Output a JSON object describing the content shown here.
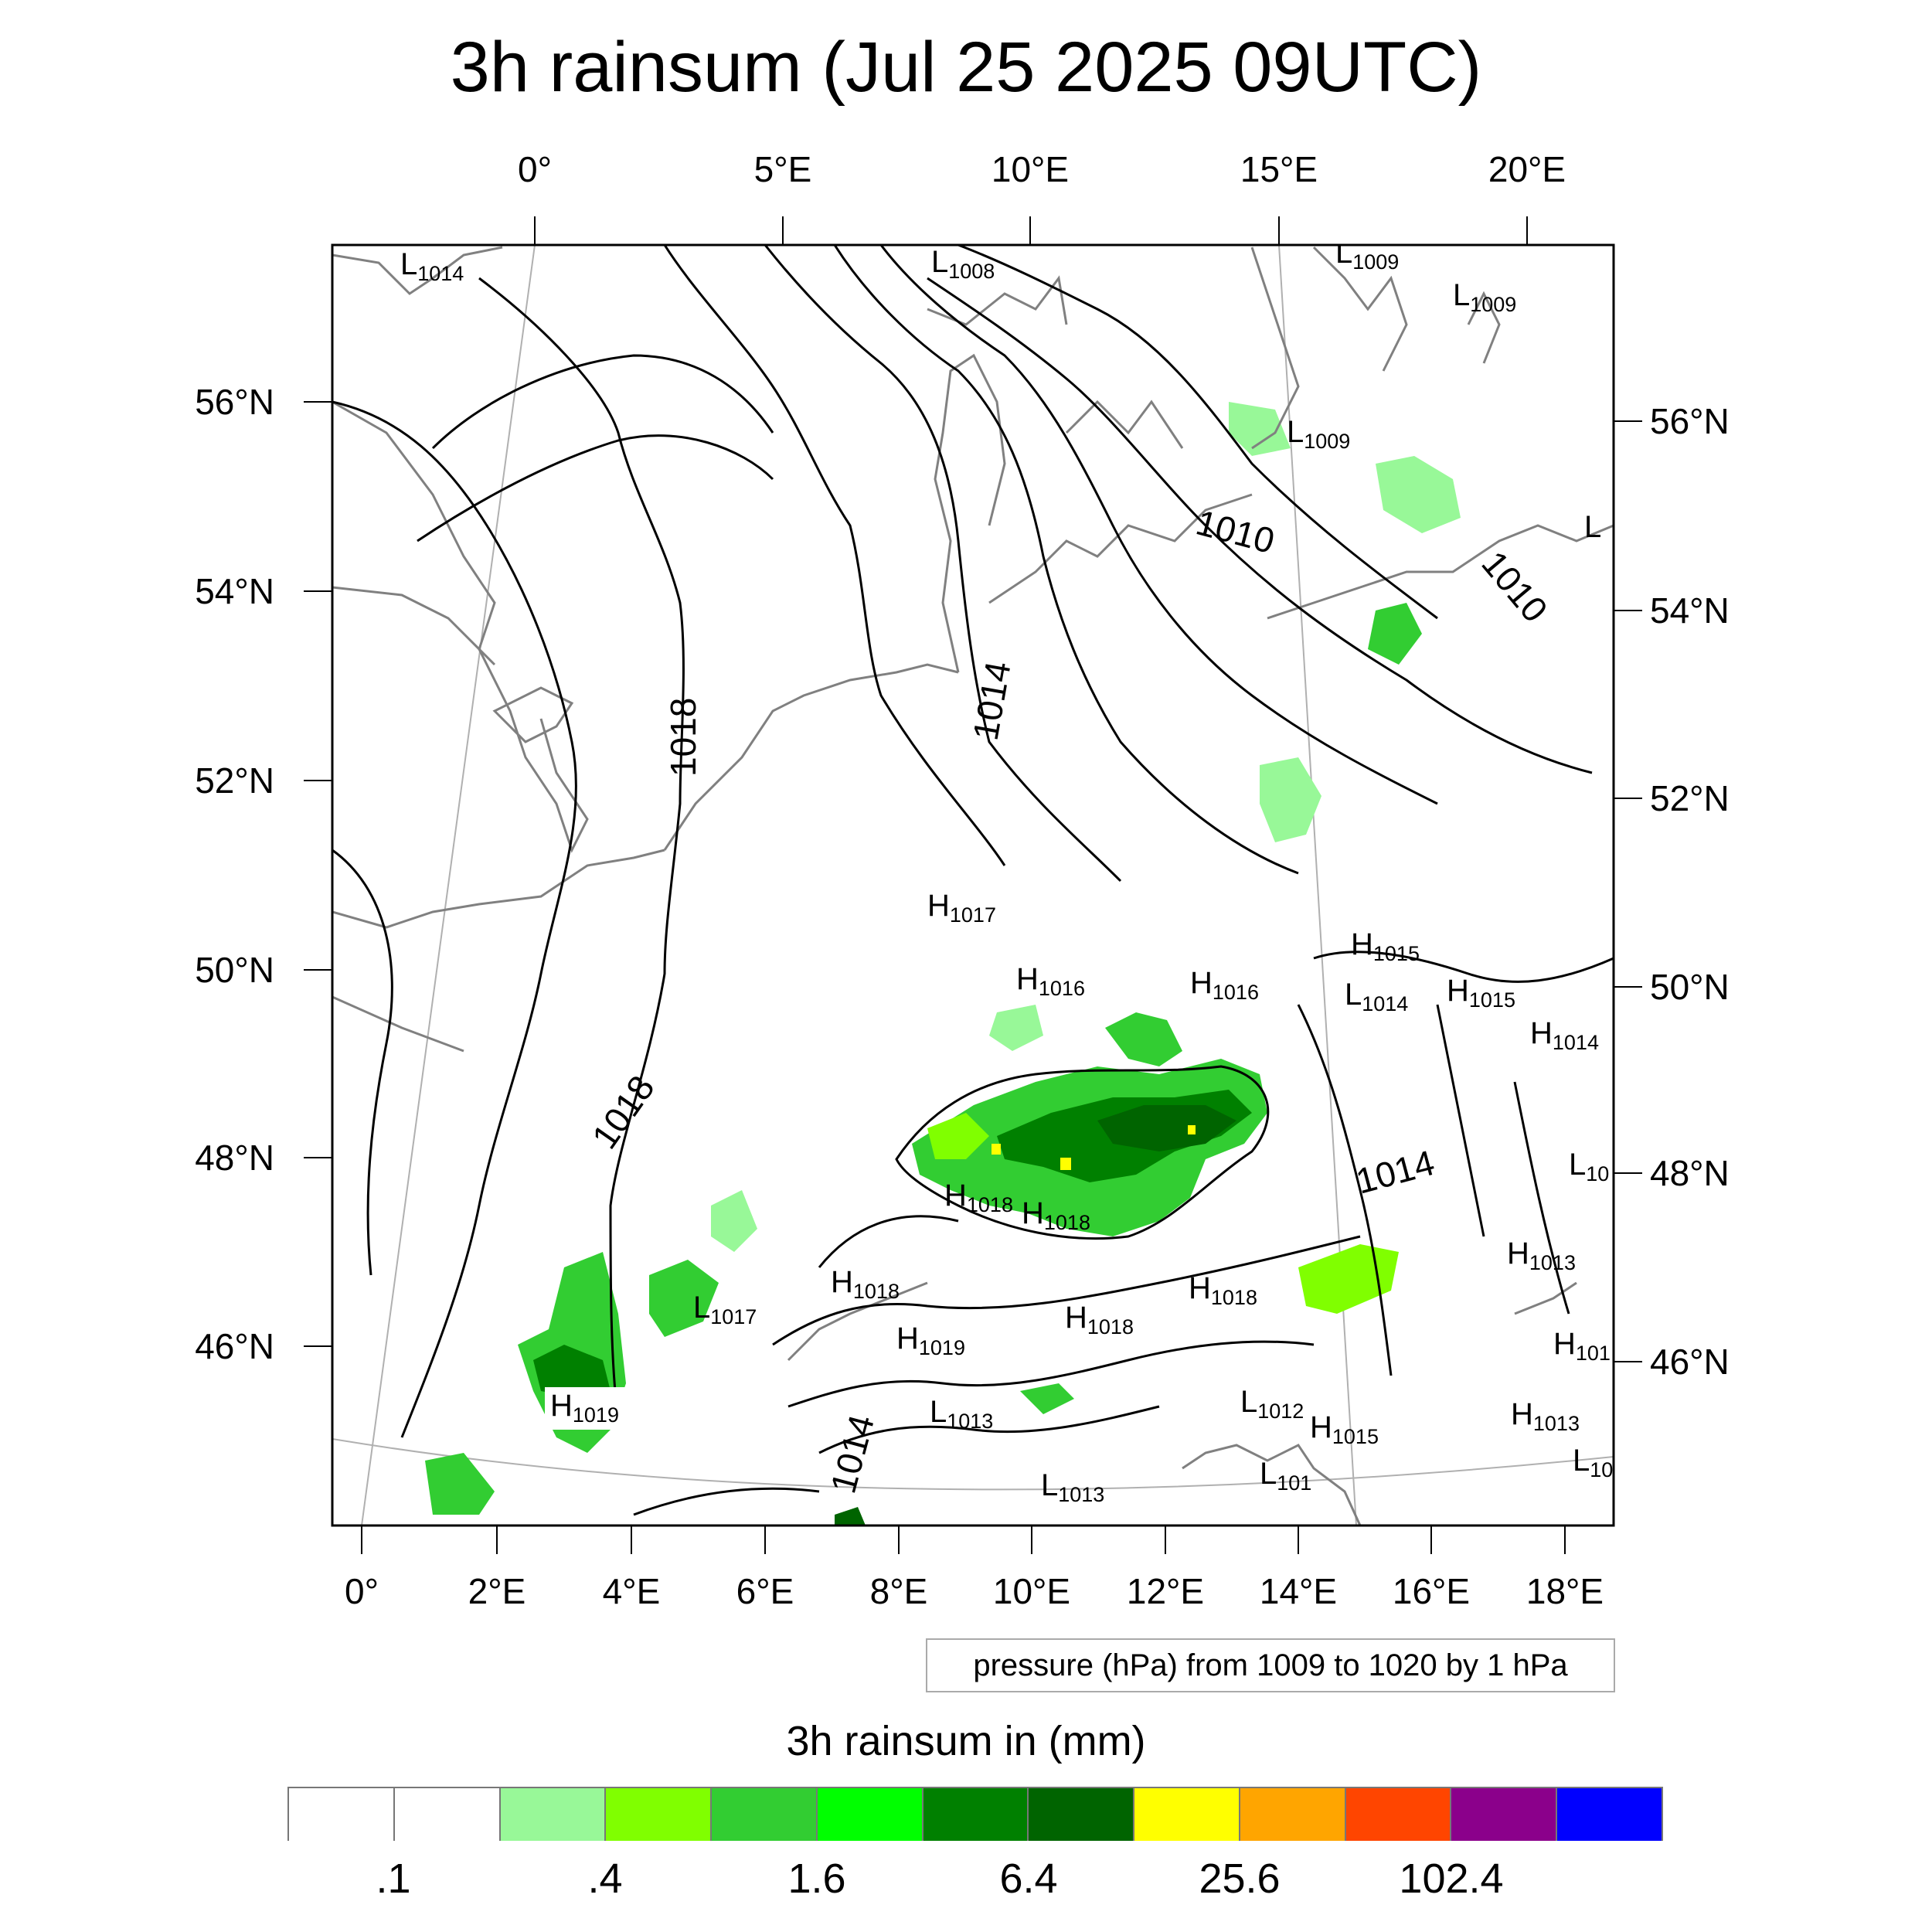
{
  "title": "3h rainsum (Jul 25 2025 09UTC)",
  "top_lon_labels": [
    "0°",
    "5°E",
    "10°E",
    "15°E",
    "20°E"
  ],
  "left_lat_labels": [
    "56°N",
    "54°N",
    "52°N",
    "50°N",
    "48°N",
    "46°N"
  ],
  "right_lat_labels": [
    "56°N",
    "54°N",
    "52°N",
    "50°N",
    "48°N",
    "46°N"
  ],
  "bottom_lon_labels": [
    "0°",
    "2°E",
    "4°E",
    "6°E",
    "8°E",
    "10°E",
    "12°E",
    "14°E",
    "16°E",
    "18°E"
  ],
  "isobar_labels": [
    "1010",
    "1010",
    "1014",
    "1018",
    "1018",
    "1014",
    "1014"
  ],
  "pressure_centers": [
    {
      "type": "L",
      "value": "1014"
    },
    {
      "type": "L",
      "value": "1008"
    },
    {
      "type": "L",
      "value": "1009"
    },
    {
      "type": "L",
      "value": "1009"
    },
    {
      "type": "L",
      "value": "1009"
    },
    {
      "type": "L",
      "value": ""
    },
    {
      "type": "H",
      "value": "1017"
    },
    {
      "type": "H",
      "value": "1016"
    },
    {
      "type": "H",
      "value": "1016"
    },
    {
      "type": "H",
      "value": "1015"
    },
    {
      "type": "L",
      "value": "1014"
    },
    {
      "type": "H",
      "value": "1015"
    },
    {
      "type": "H",
      "value": "1014"
    },
    {
      "type": "L",
      "value": "10"
    },
    {
      "type": "H",
      "value": "1018"
    },
    {
      "type": "H",
      "value": "1018"
    },
    {
      "type": "H",
      "value": "1018"
    },
    {
      "type": "L",
      "value": "1017"
    },
    {
      "type": "H",
      "value": "1018"
    },
    {
      "type": "H",
      "value": "1018"
    },
    {
      "type": "H",
      "value": "1019"
    },
    {
      "type": "H",
      "value": "1013"
    },
    {
      "type": "H",
      "value": "101"
    },
    {
      "type": "H",
      "value": "1019"
    },
    {
      "type": "L",
      "value": "1013"
    },
    {
      "type": "L",
      "value": "1012"
    },
    {
      "type": "H",
      "value": "1015"
    },
    {
      "type": "H",
      "value": "1013"
    },
    {
      "type": "L",
      "value": "1013"
    },
    {
      "type": "L",
      "value": "101"
    },
    {
      "type": "L",
      "value": "10"
    }
  ],
  "contour_info": "pressure (hPa) from 1009 to 1020 by 1 hPa",
  "colorbar": {
    "title": "3h rainsum in (mm)",
    "labels": [
      ".1",
      ".4",
      "1.6",
      "6.4",
      "25.6",
      "102.4"
    ],
    "colors": [
      "#ffffff",
      "#ffffff",
      "#98f898",
      "#80ff00",
      "#32cd32",
      "#00ff00",
      "#008000",
      "#006400",
      "#ffff00",
      "#ffa500",
      "#ff4500",
      "#8b008b",
      "#0000ff"
    ]
  }
}
